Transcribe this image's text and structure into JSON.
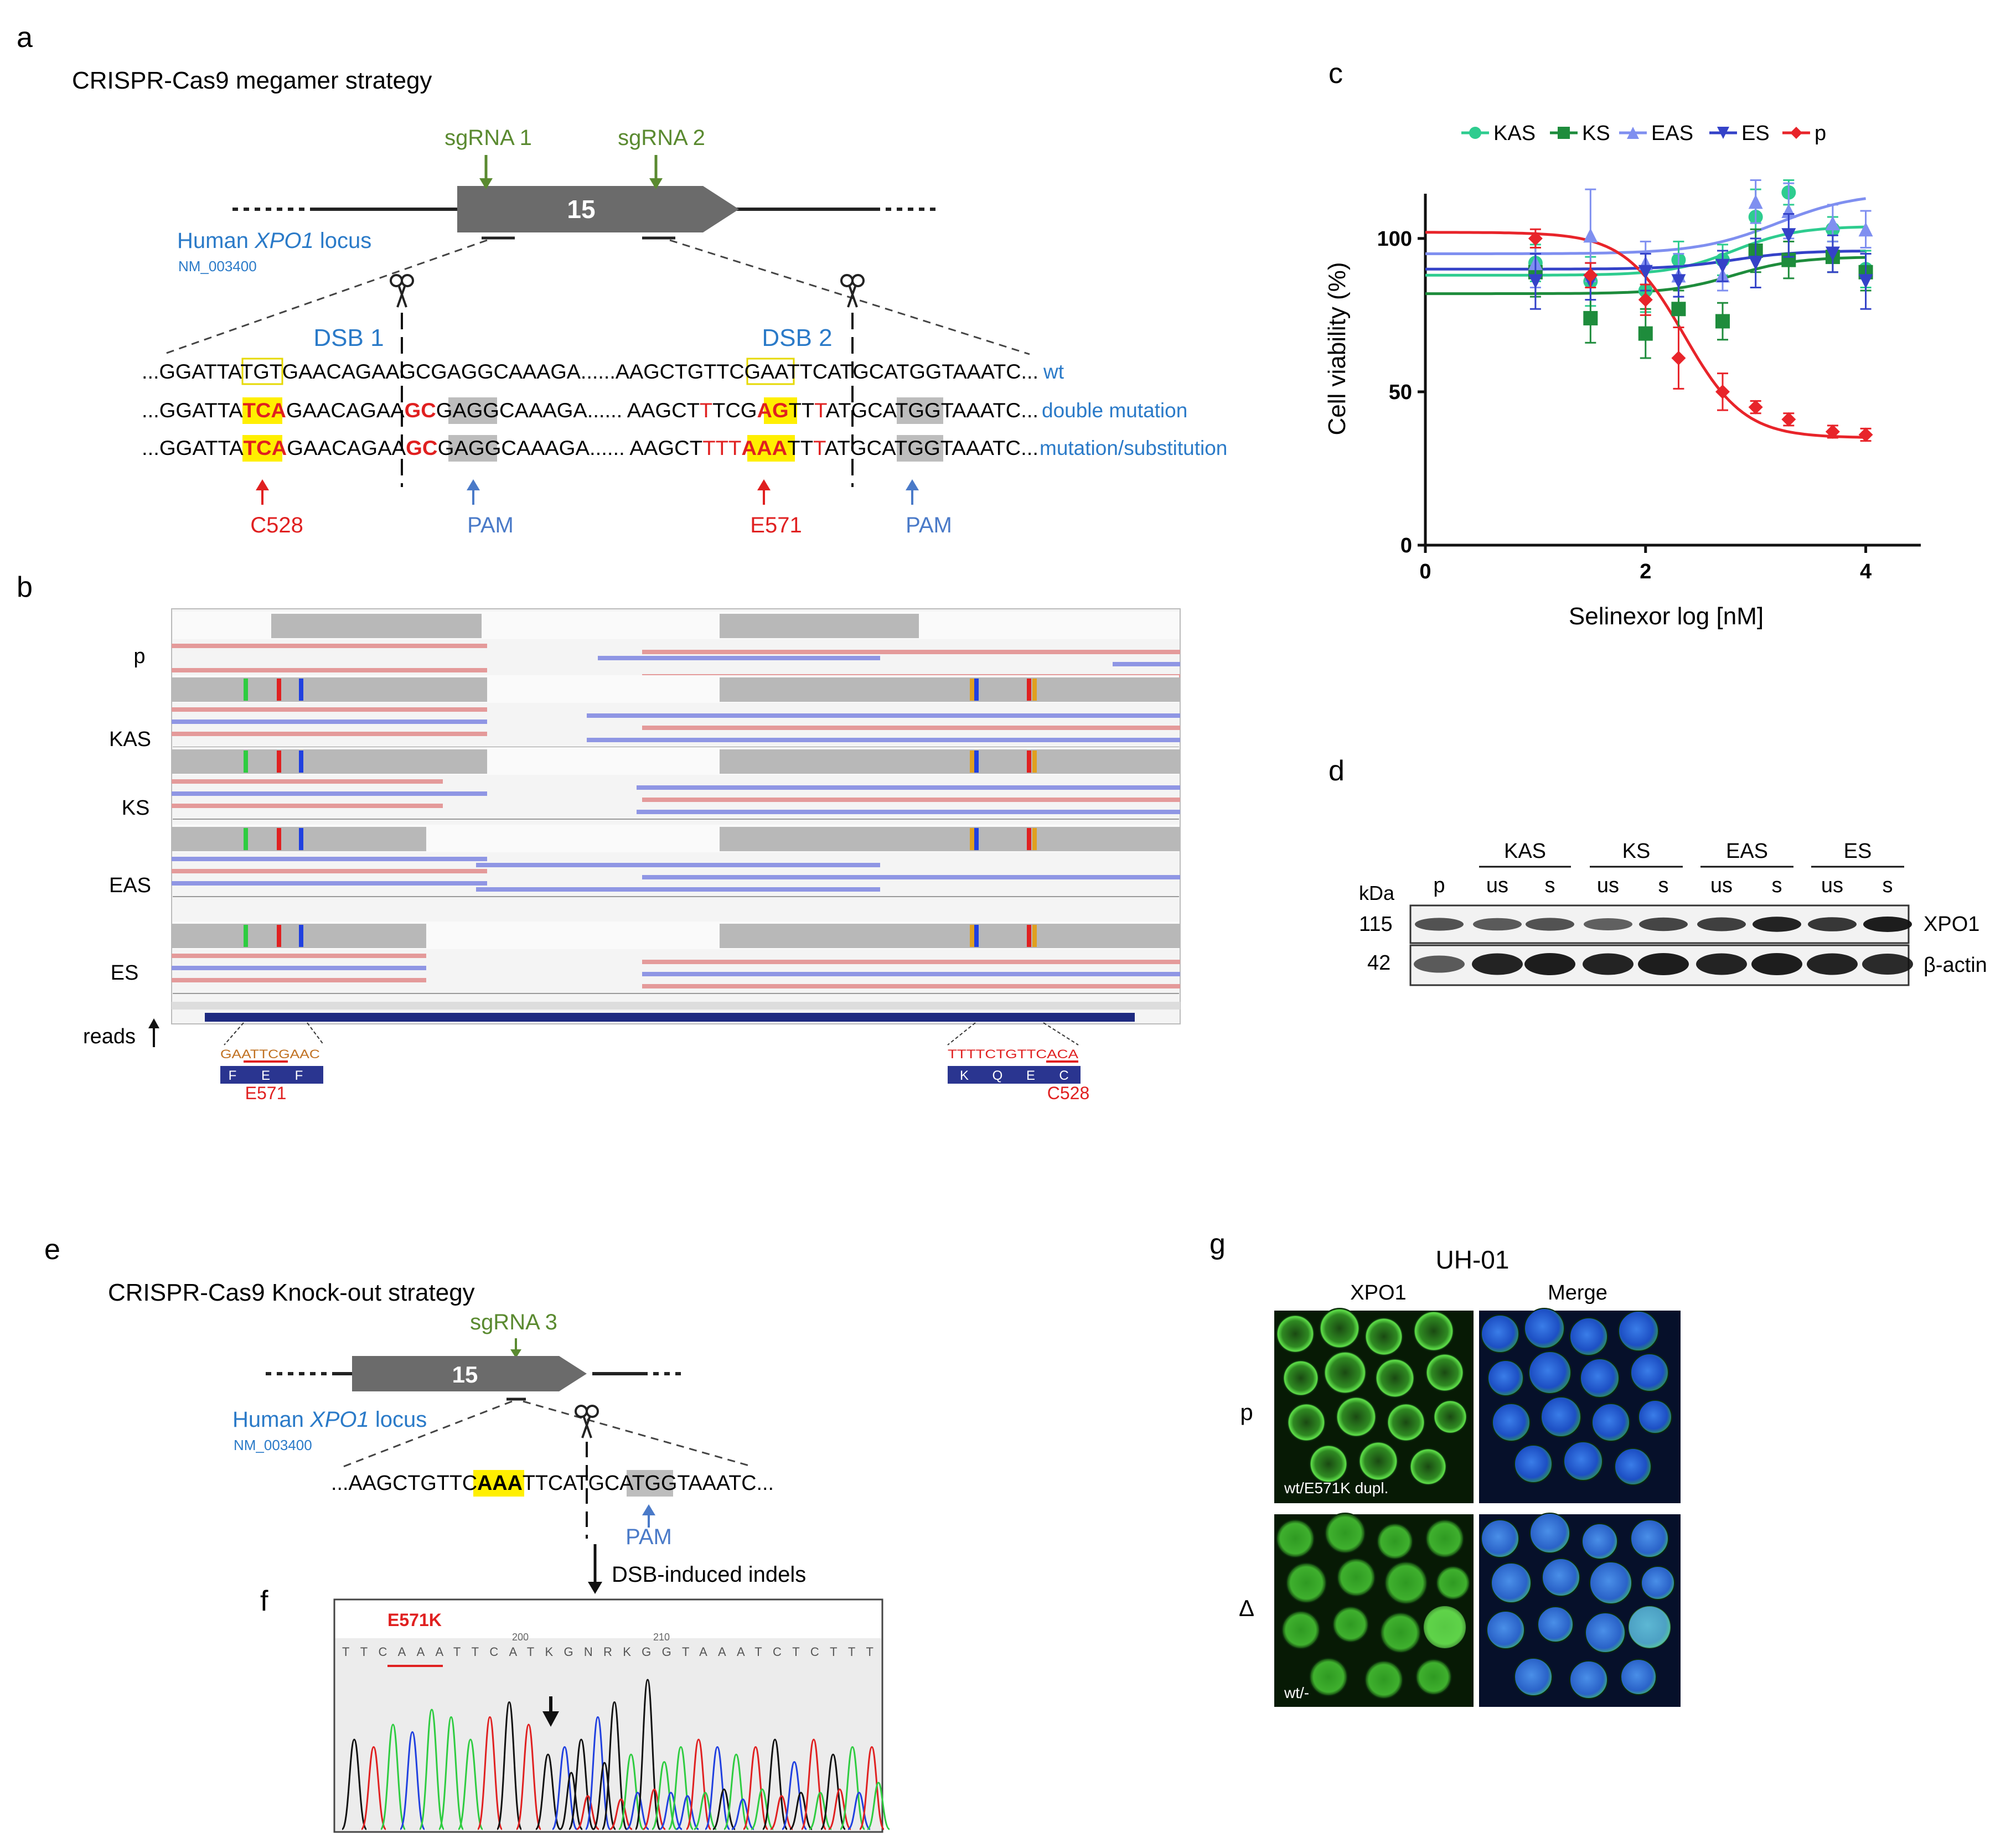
{
  "panels": {
    "a": "a",
    "b": "b",
    "c": "c",
    "d": "d",
    "e": "e",
    "f": "f",
    "g": "g"
  },
  "panel_a": {
    "title": "CRISPR-Cas9 megamer strategy",
    "sgrna1": "sgRNA 1",
    "sgrna2": "sgRNA 2",
    "exon": "15",
    "locus_prefix": "Human ",
    "locus_gene": "XPO1",
    "locus_suffix": " locus",
    "accession": "NM_003400",
    "dsb1": "DSB 1",
    "dsb2": "DSB 2",
    "rows": [
      {
        "seg1": "...GGATTA",
        "box1": "TGT",
        "seg2": "GAACAGAA",
        "cut1": "",
        "seg3": "GCGAGGCAAAGA......AAGCTGTTC",
        "box2": "GAA",
        "seg4": "TTCATGCATGGTAAATC...",
        "label": "wt"
      },
      {
        "pre": "...GGATTA",
        "hl1": "TCA",
        "mid1": "GAACAGAA",
        "gc": "GC",
        "g1": "G",
        "agg": "AGG",
        "mid2": "CAAAGA...... AAGCT",
        "t1": "T",
        "mid3": "TCG",
        "ag": "AG",
        "t2": "TT",
        "t3": "T",
        "mid4": "ATGCA",
        "tgg": "TGG",
        "end": "TAAATC...",
        "label": "double mutation"
      },
      {
        "pre": "...GGATTA",
        "hl1": "TCA",
        "mid1": "GAACAGAA",
        "gc": "GC",
        "g1": "G",
        "agg": "AGG",
        "mid2": "CAAAGA...... AAGCT",
        "t1": "TTT",
        "hl2": "AAA",
        "mid3": "TT",
        "t3": "T",
        "mid4": "ATGCA",
        "tgg": "TGG",
        "end": "TAAATC...",
        "label": "mutation/substitution"
      }
    ],
    "c528": "C528",
    "e571": "E571",
    "pam": "PAM"
  },
  "panel_b": {
    "tracks": [
      "p",
      "KAS",
      "KS",
      "EAS",
      "ES"
    ],
    "reads_label": "reads",
    "left_seq": "GAATTCGAAC",
    "left_aa": [
      "F",
      "E",
      "F"
    ],
    "left_site": "E571",
    "right_seq": "TTTTCTGTTCACA",
    "right_aa": [
      "K",
      "Q",
      "E",
      "C"
    ],
    "right_site": "C528"
  },
  "chart_data": {
    "type": "scatter",
    "xlabel": "Selinexor log [nM]",
    "ylabel": "Cell viability (%)",
    "xlim": [
      0,
      4.5
    ],
    "ylim": [
      0,
      120
    ],
    "xticks": [
      0,
      2,
      4
    ],
    "yticks": [
      0,
      50,
      100
    ],
    "legend_position": "top",
    "series": [
      {
        "name": "KAS",
        "color": "#2ecc8f",
        "marker": "circle",
        "x": [
          1,
          1.5,
          2,
          2.3,
          2.7,
          3,
          3.3,
          3.7,
          4
        ],
        "y": [
          92,
          86,
          83,
          93,
          93,
          107,
          115,
          103,
          90
        ],
        "err": [
          6,
          8,
          7,
          6,
          5,
          9,
          4,
          4,
          6
        ],
        "fit": {
          "bottom": 88,
          "top": 104,
          "logec50": 2.8,
          "hill": 1.5
        }
      },
      {
        "name": "KS",
        "color": "#1e8c3c",
        "marker": "square",
        "x": [
          1,
          1.5,
          2,
          2.3,
          2.7,
          3,
          3.3,
          3.7,
          4
        ],
        "y": [
          89,
          74,
          69,
          77,
          73,
          96,
          93,
          94,
          89
        ],
        "err": [
          8,
          8,
          8,
          6,
          6,
          7,
          6,
          5,
          6
        ],
        "fit": {
          "bottom": 82,
          "top": 94,
          "logec50": 2.8,
          "hill": 1.5
        }
      },
      {
        "name": "EAS",
        "color": "#7f8ff0",
        "marker": "triangle",
        "x": [
          1,
          1.5,
          2,
          2.3,
          2.7,
          3,
          3.3,
          3.7,
          4
        ],
        "y": [
          92,
          101,
          92,
          88,
          88,
          112,
          109,
          105,
          103
        ],
        "err": [
          8,
          15,
          7,
          7,
          5,
          7,
          9,
          6,
          6
        ],
        "fit": {
          "bottom": 95,
          "top": 115,
          "logec50": 3.2,
          "hill": 1.2
        }
      },
      {
        "name": "ES",
        "color": "#3442c8",
        "marker": "triangle-down",
        "x": [
          1,
          1.5,
          2,
          2.3,
          2.7,
          3,
          3.3,
          3.7,
          4
        ],
        "y": [
          86,
          86,
          89,
          86,
          91,
          92,
          101,
          95,
          86
        ],
        "err": [
          9,
          6,
          6,
          5,
          5,
          8,
          7,
          6,
          9
        ],
        "fit": {
          "bottom": 90,
          "top": 96,
          "logec50": 2.8,
          "hill": 1.5
        }
      },
      {
        "name": "p",
        "color": "#e8242a",
        "marker": "diamond",
        "x": [
          1,
          1.5,
          2,
          2.3,
          2.7,
          3,
          3.3,
          3.7,
          4
        ],
        "y": [
          100,
          88,
          80,
          61,
          50,
          45,
          41,
          37,
          36
        ],
        "err": [
          3,
          4,
          5,
          10,
          6,
          2,
          2,
          2,
          2
        ],
        "fit": {
          "bottom": 35,
          "top": 102,
          "logec50": 2.35,
          "hill": 1.6
        }
      }
    ]
  },
  "panel_d": {
    "kda_label": "kDa",
    "groups": [
      "KAS",
      "KS",
      "EAS",
      "ES"
    ],
    "lanes": [
      "p",
      "us",
      "s",
      "us",
      "s",
      "us",
      "s",
      "us",
      "s"
    ],
    "markers": [
      "115",
      "42"
    ],
    "band_labels": [
      "XPO1",
      "β-actin"
    ],
    "xpo1_intensity": [
      0.6,
      0.55,
      0.6,
      0.5,
      0.7,
      0.75,
      0.95,
      0.8,
      1.0
    ],
    "actin_intensity": [
      0.55,
      0.95,
      1.0,
      0.95,
      1.0,
      0.95,
      1.0,
      0.95,
      0.9
    ]
  },
  "panel_e": {
    "title": "CRISPR-Cas9 Knock-out strategy",
    "sgrna3": "sgRNA 3",
    "exon": "15",
    "locus_prefix": "Human ",
    "locus_gene": "XPO1",
    "locus_suffix": " locus",
    "accession": "NM_003400",
    "seq_pre": "...AAGCTGTTC",
    "seq_hl": "AAA",
    "seq_mid": "TTCATGCA",
    "seq_tgg": "TGG",
    "seq_end": "TAAATC...",
    "pam": "PAM",
    "indels": "DSB-induced indels"
  },
  "panel_f": {
    "mutation": "E571K",
    "tick_200": "200",
    "tick_210": "210",
    "bases": "TTCAAATTCATKGNRKGGTAAATCTCTTT"
  },
  "panel_g": {
    "title": "UH-01",
    "col1": "XPO1",
    "col2": "Merge",
    "row1": "p",
    "row2": "Δ",
    "caption1": "wt/E571K dupl.",
    "caption2": "wt/-"
  }
}
